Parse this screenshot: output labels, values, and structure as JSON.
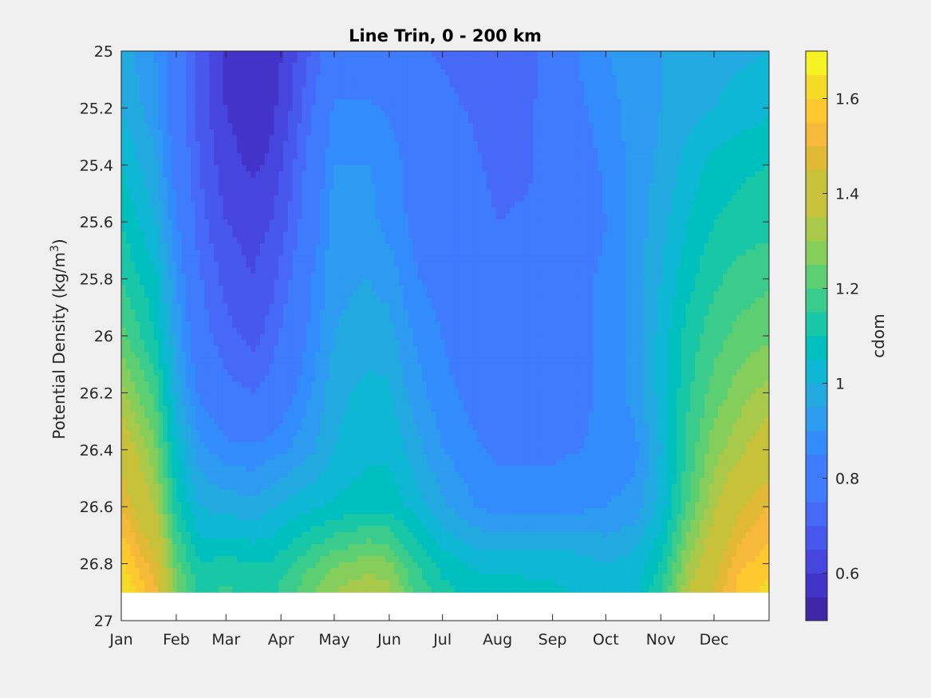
{
  "chart_data": {
    "type": "heatmap",
    "subtype": "filled-contour",
    "title": "Line Trin, 0 - 200 km",
    "ylabel_text": "Potential Density (kg/m",
    "ylabel_superscript": "3",
    "ylabel_close": ")",
    "colorbar_label": "cdom",
    "x_tick_labels": [
      "Jan",
      "Feb",
      "Mar",
      "Apr",
      "May",
      "Jun",
      "Jul",
      "Aug",
      "Sep",
      "Oct",
      "Nov",
      "Dec"
    ],
    "x_tick_values": [
      1,
      32,
      60,
      91,
      121,
      152,
      182,
      213,
      244,
      274,
      305,
      335
    ],
    "xlim": [
      1,
      366
    ],
    "y_tick_labels": [
      "25",
      "25.2",
      "25.4",
      "25.6",
      "25.8",
      "26",
      "26.2",
      "26.4",
      "26.6",
      "26.8",
      "27"
    ],
    "y_tick_values": [
      25,
      25.2,
      25.4,
      25.6,
      25.8,
      26,
      26.2,
      26.4,
      26.6,
      26.8,
      27
    ],
    "ylim": [
      25,
      27
    ],
    "y_reversed": true,
    "y_data_max": 26.9,
    "colorbar_ticks": [
      "0.6",
      "0.8",
      "1",
      "1.2",
      "1.4",
      "1.6"
    ],
    "colorbar_tick_values": [
      0.6,
      0.8,
      1.0,
      1.2,
      1.4,
      1.6
    ],
    "clim": [
      0.5,
      1.7
    ],
    "contour_levels": [
      0.5,
      0.55,
      0.6,
      0.65,
      0.7,
      0.75,
      0.8,
      0.85,
      0.9,
      0.95,
      1.0,
      1.05,
      1.1,
      1.15,
      1.2,
      1.25,
      1.3,
      1.35,
      1.4,
      1.45,
      1.5,
      1.55,
      1.6,
      1.65,
      1.7
    ],
    "colormap": [
      "#3e26a8",
      "#4334c9",
      "#4646de",
      "#4758ee",
      "#4669f8",
      "#3f7bfd",
      "#338cfc",
      "#2d9bef",
      "#22aae0",
      "#0eb7d3",
      "#00c0bf",
      "#18c7a6",
      "#3acc8d",
      "#5dcf73",
      "#86ce5b",
      "#a9c94a",
      "#c7c23a",
      "#e1b934",
      "#f6b93a",
      "#fdc92e",
      "#f5db26",
      "#f6f324"
    ],
    "grid": false,
    "z_samples_note_free": true,
    "z_columns_x": [
      1,
      20,
      32,
      45,
      60,
      75,
      85,
      95,
      110,
      121,
      140,
      152,
      165,
      182,
      200,
      213,
      230,
      244,
      260,
      274,
      290,
      305,
      320,
      335,
      350,
      366
    ],
    "z_rows_y": [
      25,
      25.2,
      25.4,
      25.6,
      25.8,
      26,
      26.2,
      26.4,
      26.6,
      26.8,
      26.9
    ],
    "z": [
      [
        0.98,
        0.9,
        0.8,
        0.68,
        0.58,
        0.56,
        0.56,
        0.62,
        0.72,
        0.8,
        0.8,
        0.78,
        0.76,
        0.74,
        0.72,
        0.7,
        0.72,
        0.78,
        0.86,
        0.9,
        0.92,
        0.95,
        0.97,
        0.98,
        0.99,
        1.0
      ],
      [
        1.0,
        0.92,
        0.8,
        0.68,
        0.6,
        0.57,
        0.58,
        0.64,
        0.76,
        0.86,
        0.86,
        0.84,
        0.8,
        0.77,
        0.74,
        0.72,
        0.74,
        0.78,
        0.84,
        0.88,
        0.92,
        0.95,
        0.98,
        1.0,
        1.02,
        1.04
      ],
      [
        1.05,
        0.96,
        0.82,
        0.7,
        0.62,
        0.59,
        0.61,
        0.67,
        0.8,
        0.9,
        0.9,
        0.88,
        0.83,
        0.8,
        0.76,
        0.73,
        0.74,
        0.78,
        0.82,
        0.86,
        0.92,
        0.96,
        1.02,
        1.07,
        1.09,
        1.1
      ],
      [
        1.1,
        1.0,
        0.86,
        0.72,
        0.65,
        0.63,
        0.65,
        0.7,
        0.82,
        0.93,
        0.92,
        0.88,
        0.84,
        0.8,
        0.78,
        0.75,
        0.76,
        0.78,
        0.82,
        0.85,
        0.92,
        0.98,
        1.05,
        1.1,
        1.12,
        1.13
      ],
      [
        1.15,
        1.06,
        0.9,
        0.76,
        0.68,
        0.65,
        0.68,
        0.74,
        0.86,
        0.94,
        0.95,
        0.93,
        0.86,
        0.82,
        0.8,
        0.78,
        0.8,
        0.82,
        0.84,
        0.86,
        0.92,
        1.0,
        1.08,
        1.14,
        1.17,
        1.19
      ],
      [
        1.22,
        1.1,
        0.94,
        0.78,
        0.72,
        0.68,
        0.72,
        0.78,
        0.88,
        0.95,
        0.97,
        0.97,
        0.9,
        0.85,
        0.8,
        0.79,
        0.8,
        0.82,
        0.84,
        0.86,
        0.92,
        1.02,
        1.12,
        1.18,
        1.22,
        1.24
      ],
      [
        1.32,
        1.18,
        0.98,
        0.84,
        0.77,
        0.75,
        0.77,
        0.83,
        0.91,
        0.98,
        1.02,
        1.01,
        0.93,
        0.87,
        0.83,
        0.81,
        0.81,
        0.82,
        0.84,
        0.86,
        0.92,
        1.02,
        1.14,
        1.22,
        1.28,
        1.32
      ],
      [
        1.42,
        1.26,
        1.05,
        0.92,
        0.87,
        0.86,
        0.88,
        0.9,
        0.95,
        1.0,
        1.04,
        1.04,
        0.98,
        0.9,
        0.86,
        0.84,
        0.84,
        0.84,
        0.85,
        0.86,
        0.88,
        1.0,
        1.16,
        1.28,
        1.34,
        1.4
      ],
      [
        1.5,
        1.34,
        1.12,
        1.0,
        0.98,
        0.97,
        0.99,
        1.02,
        1.04,
        1.06,
        1.08,
        1.08,
        1.04,
        0.96,
        0.9,
        0.88,
        0.88,
        0.88,
        0.89,
        0.9,
        0.92,
        1.02,
        1.2,
        1.34,
        1.44,
        1.5
      ],
      [
        1.62,
        1.46,
        1.22,
        1.1,
        1.12,
        1.1,
        1.1,
        1.14,
        1.2,
        1.24,
        1.28,
        1.26,
        1.16,
        1.08,
        1.04,
        1.04,
        1.04,
        1.04,
        1.02,
        1.0,
        1.02,
        1.1,
        1.3,
        1.42,
        1.54,
        1.58
      ],
      [
        1.66,
        1.52,
        1.26,
        1.14,
        1.16,
        1.14,
        1.14,
        1.18,
        1.26,
        1.3,
        1.34,
        1.32,
        1.2,
        1.12,
        1.08,
        1.07,
        1.06,
        1.06,
        1.04,
        1.02,
        1.04,
        1.14,
        1.34,
        1.46,
        1.58,
        1.62
      ]
    ]
  }
}
